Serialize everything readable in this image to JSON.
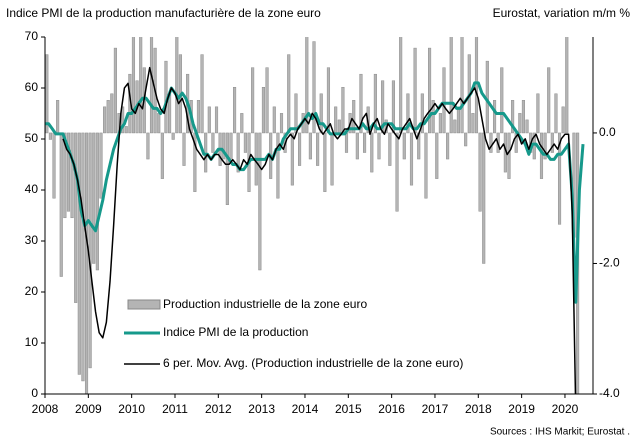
{
  "chart_data": {
    "type": "combo",
    "title": "Indice PMI de la production manufacturière de la zone euro",
    "y2_title": "Eurostat, variation m/m %",
    "source": "Sources : IHS Markit; Eurostat .",
    "categories": [
      "2008",
      null,
      null,
      null,
      null,
      null,
      null,
      null,
      null,
      null,
      null,
      null,
      "2009",
      null,
      null,
      null,
      null,
      null,
      null,
      null,
      null,
      null,
      null,
      null,
      "2010",
      null,
      null,
      null,
      null,
      null,
      null,
      null,
      null,
      null,
      null,
      null,
      "2011",
      null,
      null,
      null,
      null,
      null,
      null,
      null,
      null,
      null,
      null,
      null,
      "2012",
      null,
      null,
      null,
      null,
      null,
      null,
      null,
      null,
      null,
      null,
      null,
      "2013",
      null,
      null,
      null,
      null,
      null,
      null,
      null,
      null,
      null,
      null,
      null,
      "2014",
      null,
      null,
      null,
      null,
      null,
      null,
      null,
      null,
      null,
      null,
      null,
      "2015",
      null,
      null,
      null,
      null,
      null,
      null,
      null,
      null,
      null,
      null,
      null,
      "2016",
      null,
      null,
      null,
      null,
      null,
      null,
      null,
      null,
      null,
      null,
      null,
      "2017",
      null,
      null,
      null,
      null,
      null,
      null,
      null,
      null,
      null,
      null,
      null,
      "2018",
      null,
      null,
      null,
      null,
      null,
      null,
      null,
      null,
      null,
      null,
      null,
      "2019",
      null,
      null,
      null,
      null,
      null,
      null,
      null,
      null,
      null,
      null,
      null,
      "2020",
      null,
      null,
      null,
      null,
      null
    ],
    "ylim": [
      0,
      70
    ],
    "yticks": [
      0,
      10,
      20,
      30,
      40,
      50,
      60,
      70
    ],
    "y2lim": [
      -4,
      1.47
    ],
    "y2ticks": [
      {
        "value": -4,
        "label": "-4.0"
      },
      {
        "value": -2,
        "label": "-2.0"
      },
      {
        "value": 0,
        "label": "0.0"
      }
    ],
    "series": [
      {
        "name": "Production industrielle de la zone euro",
        "type": "bar",
        "axis": "y2",
        "color": "#b4b4b4",
        "values": [
          1.2,
          -0.1,
          -1.0,
          0.5,
          -2.2,
          -1.3,
          -1.2,
          -1.3,
          -2.6,
          -3.7,
          -3.8,
          -4.0,
          -3.6,
          -2.0,
          -2.1,
          -1.0,
          0.4,
          0.5,
          0.6,
          1.3,
          0.3,
          0.4,
          0.1,
          0.9,
          1.5,
          0.8,
          1.6,
          1.0,
          -0.4,
          1.7,
          1.3,
          0.3,
          -0.7,
          1.1,
          0.6,
          -0.1,
          1.6,
          1.2,
          -0.5,
          0.9,
          0.5,
          -0.9,
          0.5,
          1.2,
          -0.6,
          0.4,
          -0.3,
          0.4,
          -0.5,
          -0.4,
          -1.1,
          -0.4,
          0.7,
          -0.6,
          0.3,
          -0.3,
          -0.9,
          1.0,
          -0.8,
          -2.1,
          0.7,
          1.0,
          -0.7,
          0.4,
          -1.0,
          0.3,
          -0.3,
          1.2,
          -0.8,
          0.6,
          -0.5,
          0.3,
          1.5,
          -0.4,
          1.4,
          -0.5,
          0.6,
          -0.9,
          1.0,
          -0.8,
          0.4,
          0.2,
          0.7,
          -0.3,
          0.3,
          0.5,
          -0.4,
          0.9,
          -0.3,
          0.4,
          -0.6,
          0.9,
          -0.4,
          0.8,
          0.2,
          -0.5,
          0.8,
          -1.2,
          1.7,
          -0.4,
          0.6,
          -0.8,
          1.3,
          -0.4,
          0.6,
          -1.0,
          1.3,
          0.5,
          -0.7,
          0.3,
          1.0,
          -0.4,
          1.5,
          0.2,
          0.4,
          1.5,
          -0.2,
          1.2,
          0.3,
          1.5,
          -1.2,
          -2.0,
          1.1,
          -0.3,
          0.5,
          -0.3,
          1.0,
          -0.6,
          -0.7,
          0.5,
          -0.3,
          0.3,
          0.5,
          0.2,
          -0.3,
          -0.4,
          0.6,
          -0.7,
          -0.4,
          1.0,
          -0.3,
          0.6,
          -1.4,
          0.4,
          1.5,
          0.0,
          -1.6,
          -4.4,
          null,
          null
        ]
      },
      {
        "name": "Indice PMI de la production",
        "type": "line",
        "color": "#16998b",
        "values": [
          53,
          53,
          52,
          51,
          51,
          51,
          49,
          47,
          45,
          42,
          36,
          33,
          34,
          33,
          32,
          35,
          38,
          42,
          45,
          48,
          50,
          52,
          53,
          55,
          55,
          56,
          57,
          58,
          58,
          57,
          56,
          56,
          55,
          56,
          58,
          60,
          59,
          58,
          59,
          58,
          56,
          53,
          51,
          49,
          47,
          47,
          46,
          47,
          48,
          48,
          47,
          46,
          45,
          45,
          44,
          44,
          45,
          46,
          46,
          46,
          46,
          46,
          47,
          46,
          48,
          48,
          50,
          51,
          52,
          52,
          52,
          53,
          54,
          55,
          54,
          55,
          53,
          53,
          52,
          51,
          51,
          51,
          51,
          51,
          52,
          52,
          52,
          52,
          53,
          52,
          52,
          53,
          52,
          52,
          53,
          53,
          53,
          52,
          52,
          52,
          52,
          53,
          52,
          52,
          53,
          53,
          54,
          55,
          55,
          56,
          57,
          57,
          57,
          57,
          56,
          56,
          57,
          58,
          59,
          61,
          61,
          59,
          58,
          57,
          56,
          55,
          55,
          55,
          54,
          53,
          52,
          51,
          50,
          49,
          47,
          49,
          49,
          48,
          47,
          47,
          46,
          46,
          47,
          47,
          48,
          49,
          39,
          18,
          40,
          49
        ]
      },
      {
        "name": "6 per. Mov. Avg. (Production industrielle de la zone euro)",
        "type": "line",
        "axis": "y2",
        "color": "#000000",
        "values": [
          null,
          null,
          null,
          null,
          null,
          -0.09,
          -0.25,
          -0.33,
          -0.48,
          -0.72,
          -1.03,
          -1.42,
          -1.81,
          -2.28,
          -2.74,
          -3.06,
          -3.14,
          -2.9,
          -2.28,
          -1.42,
          -0.48,
          0.3,
          0.69,
          0.76,
          0.37,
          0.3,
          0.45,
          0.37,
          0.69,
          1.0,
          0.76,
          0.53,
          0.37,
          0.3,
          0.53,
          0.69,
          0.61,
          0.45,
          0.53,
          0.37,
          0.06,
          -0.09,
          -0.25,
          -0.33,
          -0.41,
          -0.33,
          -0.41,
          -0.33,
          -0.33,
          -0.41,
          -0.48,
          -0.48,
          -0.41,
          -0.48,
          -0.56,
          -0.41,
          -0.48,
          -0.33,
          -0.41,
          -0.48,
          -0.56,
          -0.48,
          -0.33,
          -0.41,
          -0.25,
          -0.17,
          -0.25,
          -0.09,
          -0.02,
          -0.09,
          0.06,
          0.14,
          0.22,
          0.14,
          0.3,
          0.22,
          0.06,
          -0.02,
          0.06,
          0.14,
          -0.02,
          -0.09,
          -0.02,
          0.06,
          0.06,
          0.22,
          0.14,
          0.06,
          0.22,
          0.3,
          -0.02,
          0.14,
          0.22,
          0.06,
          -0.02,
          0.14,
          0.06,
          -0.02,
          -0.09,
          0.06,
          0.14,
          0.22,
          0.06,
          -0.09,
          0.06,
          0.22,
          0.3,
          0.37,
          0.45,
          0.37,
          0.45,
          0.37,
          0.3,
          0.37,
          0.45,
          0.53,
          0.45,
          0.53,
          0.61,
          0.69,
          0.53,
          0.22,
          -0.09,
          -0.25,
          -0.17,
          -0.09,
          -0.25,
          -0.17,
          -0.33,
          -0.25,
          -0.09,
          -0.02,
          -0.17,
          -0.09,
          -0.25,
          -0.09,
          -0.02,
          -0.17,
          -0.25,
          -0.33,
          -0.25,
          -0.17,
          -0.25,
          -0.09,
          -0.02,
          -0.02,
          -1.2,
          -4.3,
          null,
          null
        ]
      }
    ]
  }
}
